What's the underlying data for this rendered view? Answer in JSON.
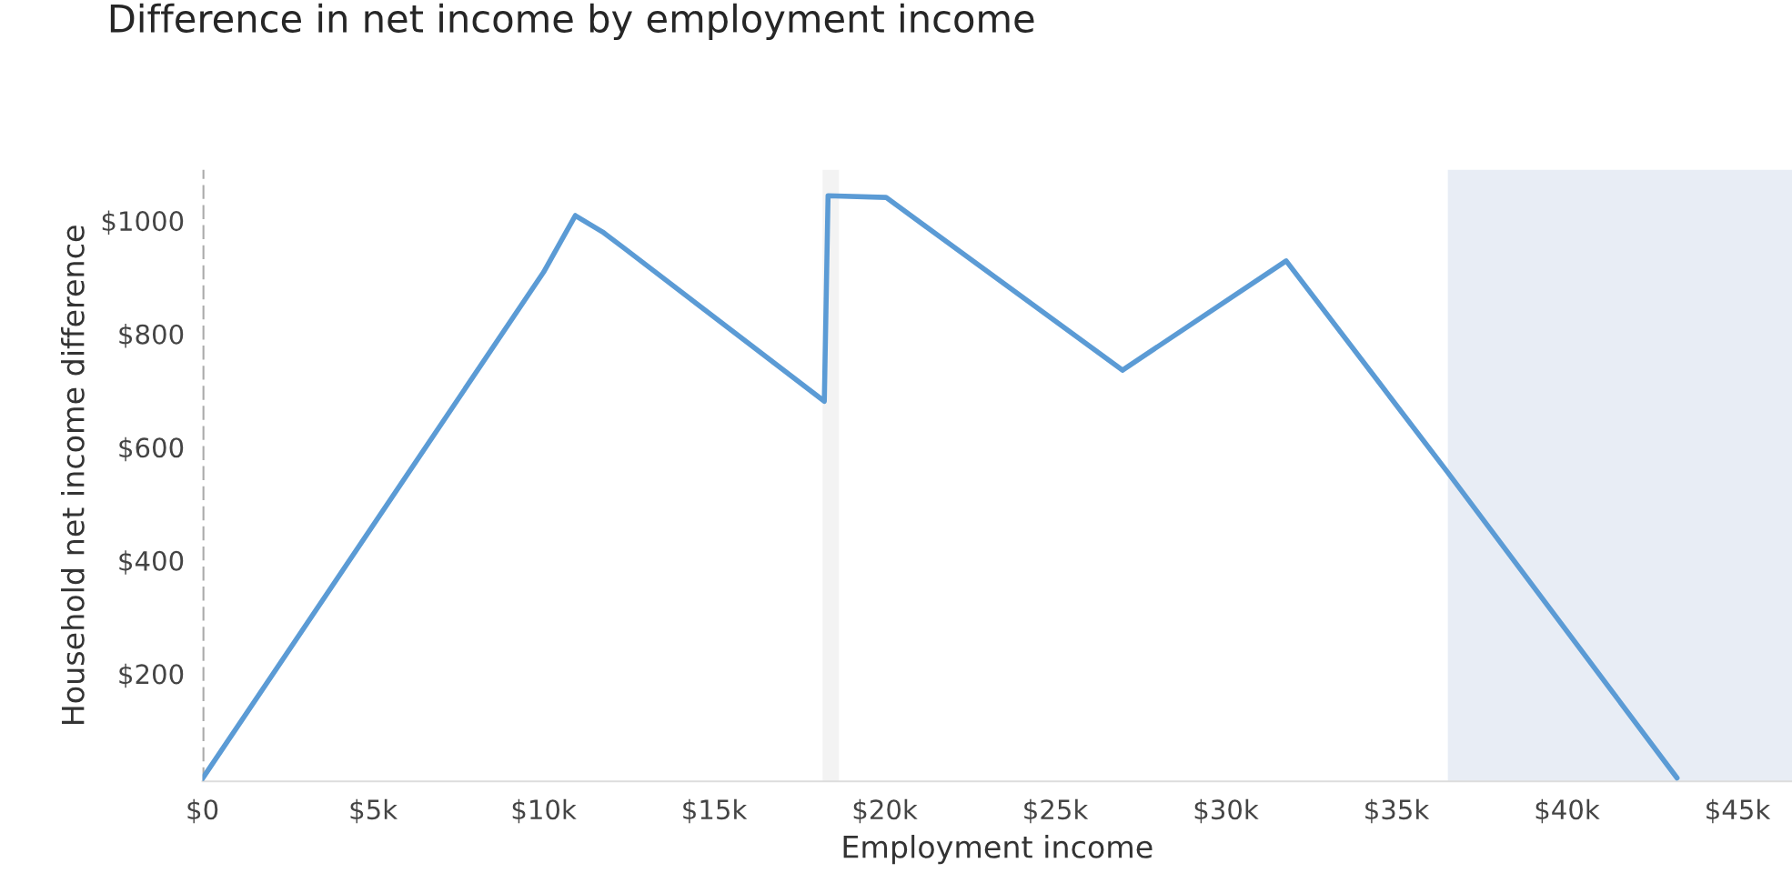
{
  "chart_data": {
    "type": "line",
    "title": "Difference in net income by employment income",
    "xlabel": "Employment income",
    "ylabel": "Household net income difference",
    "x": [
      0,
      10000,
      10930,
      11730,
      12370,
      18230,
      18340,
      20040,
      26970,
      31770,
      36500,
      43230
    ],
    "series": [
      {
        "color": "#5b9bd5",
        "values": [
          15,
          909,
          1009,
          980,
          951,
          681,
          1044,
          1041,
          736,
          929,
          556,
          16
        ]
      }
    ],
    "xlim": [
      0,
      46600
    ],
    "ylim": [
      10,
      1090
    ],
    "xticks": [
      {
        "value": 0,
        "label": "$0"
      },
      {
        "value": 5000,
        "label": "$5k"
      },
      {
        "value": 10000,
        "label": "$10k"
      },
      {
        "value": 15000,
        "label": "$15k"
      },
      {
        "value": 20000,
        "label": "$20k"
      },
      {
        "value": 25000,
        "label": "$25k"
      },
      {
        "value": 30000,
        "label": "$30k"
      },
      {
        "value": 35000,
        "label": "$35k"
      },
      {
        "value": 40000,
        "label": "$40k"
      },
      {
        "value": 45000,
        "label": "$45k"
      }
    ],
    "yticks": [
      {
        "value": 200,
        "label": "$200"
      },
      {
        "value": 400,
        "label": "$400"
      },
      {
        "value": 600,
        "label": "$600"
      },
      {
        "value": 800,
        "label": "$800"
      },
      {
        "value": 1000,
        "label": "$1000"
      }
    ],
    "ref_lines": [
      {
        "axis": "x",
        "value": 0,
        "color": "#aaaaaa",
        "line_style": "dashed"
      }
    ],
    "bands": [
      {
        "axis": "x",
        "from": 18180,
        "to": 18660,
        "color": "#f3f3f3"
      },
      {
        "axis": "x",
        "from": 36510,
        "to": 46600,
        "color": "#e8edf5"
      }
    ],
    "grid": false,
    "legend": false,
    "line_style": "solid",
    "marker": "none"
  }
}
